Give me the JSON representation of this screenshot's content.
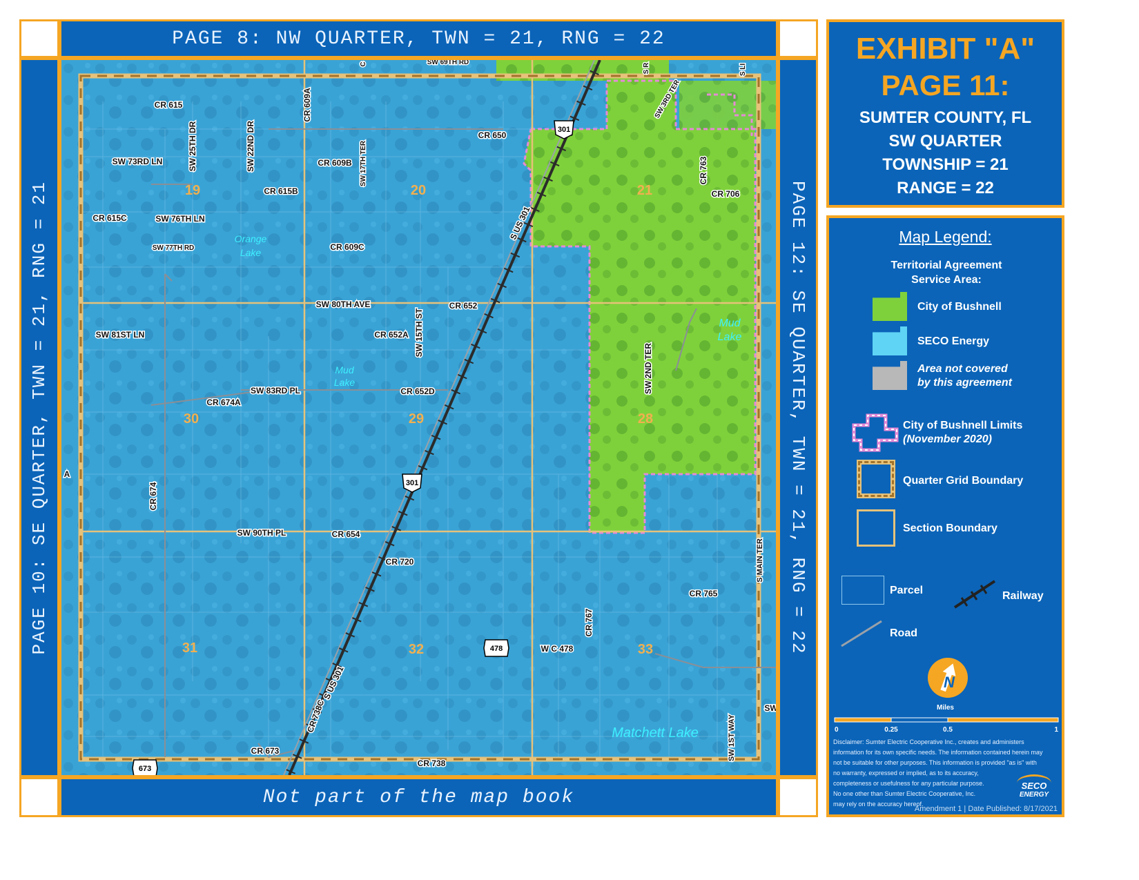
{
  "frame": {
    "top_label": "PAGE 8: NW QUARTER, TWN = 21, RNG = 22",
    "bottom_label": "Not part of the map book",
    "left_label": "PAGE 10: SE QUARTER, TWN = 21, RNG = 21",
    "right_label": "PAGE 12: SE QUARTER, TWN = 21, RNG = 22"
  },
  "exhibit": {
    "title": "EXHIBIT \"A\"",
    "page": "PAGE 11:",
    "county": "SUMTER COUNTY, FL",
    "quarter": "SW QUARTER",
    "township": "TOWNSHIP = 21",
    "range": "RANGE = 22"
  },
  "legend": {
    "heading": "Map Legend:",
    "territorial": "Territorial Agreement Service Area:",
    "bushnell": "City of Bushnell",
    "seco": "SECO Energy",
    "not_covered_1": "Area not covered",
    "not_covered_2": "by this agreement",
    "limits_1": "City of Bushnell Limits",
    "limits_2": "(November 2020)",
    "quarter_grid": "Quarter Grid Boundary",
    "section": "Section Boundary",
    "parcel": "Parcel",
    "railway": "Railway",
    "road": "Road",
    "north": "N",
    "scale_title": "Miles",
    "scale_ticks": [
      "0",
      "0.25",
      "0.5",
      "1"
    ],
    "disclaimer": [
      "Disclaimer: Sumter Electric Cooperative Inc., creates and administers",
      "information for its own specific needs. The information contained herein may",
      "not be suitable for other purposes. This information is provided \"as is\" with",
      "no warranty, expressed or implied, as to its accuracy,",
      "completeness or usefulness for any particular purpose.",
      "No one other than Sumter Electric Cooperative, Inc.",
      "may rely on the accuracy hereof."
    ],
    "logo_1": "SECO",
    "logo_2": "ENERGY",
    "footer": "Amendment 1 | Date Published: 8/17/2021"
  },
  "colors": {
    "seco": "#3aa3d6",
    "bushnell": "#7fd13b",
    "frame": "#0b64b8",
    "accent": "#f5a623"
  },
  "map": {
    "sections": [
      "19",
      "20",
      "21",
      "30",
      "29",
      "28",
      "31",
      "32",
      "33"
    ],
    "roads": {
      "cr615": "CR 615",
      "sw25th": "SW 25TH DR",
      "sw22nd": "SW 22ND DR",
      "cr609a": "CR 609A",
      "cr650": "CR 650",
      "sw73rd": "SW 73RD LN",
      "cr609b": "CR 609B",
      "sw17th": "SW 17TH TER",
      "cr615b": "CR 615B",
      "cr615c": "CR 615C",
      "sw76th": "SW 76TH LN",
      "sw77th": "SW 77TH RD",
      "cr609c": "CR 609C",
      "sw80th": "SW 80TH AVE",
      "cr652": "CR 652",
      "sw81st": "SW 81ST LN",
      "cr652a": "CR 652A",
      "sw15th": "SW 15TH ST",
      "sw83rd": "SW 83RD PL",
      "cr674a": "CR 674A",
      "cr652d": "CR 652D",
      "cr674": "CR 674",
      "sw90th": "SW 90TH PL",
      "cr654": "CR 654",
      "cr720": "CR 720",
      "cr765": "CR 765",
      "cr767": "CR 767",
      "wc478": "W C 478",
      "cr738c": "CR 738C",
      "sus301a": "S US 301",
      "sus301b": "S US 301",
      "cr673": "CR 673",
      "cr738": "CR 738",
      "cr763": "CR 763",
      "cr706": "CR 706",
      "sw2nd": "SW 2ND TER",
      "sw3rd": "SW 3RD TER",
      "smain": "S MAIN TER",
      "sw1st": "SW 1ST WAY",
      "top_clip": "SW 69TH RD",
      "sr": "S R",
      "sli": "S LI",
      "sw": "SW",
      "c": "C",
      "a": "A"
    },
    "shields": {
      "us301a": "301",
      "us301b": "301",
      "sr478": "478",
      "sr673": "673"
    },
    "lakes": {
      "orange_1": "Orange",
      "orange_2": "Lake",
      "mud1_1": "Mud",
      "mud1_2": "Lake",
      "mud2_1": "Mud",
      "mud2_2": "Lake",
      "matchett": "Matchett Lake"
    }
  }
}
